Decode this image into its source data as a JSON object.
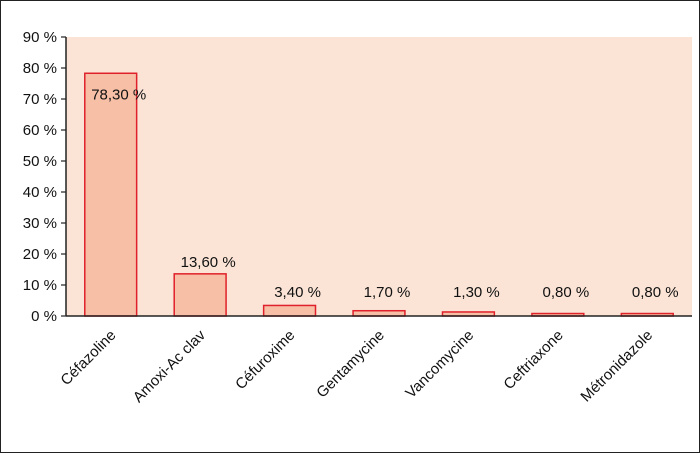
{
  "chart_data": {
    "type": "bar",
    "title": "",
    "xlabel": "",
    "ylabel": "",
    "categories": [
      "Céfazoline",
      "Amoxi-Ac clav",
      "Céfuroxime",
      "Gentamycine",
      "Vancomycine",
      "Ceftriaxone",
      "Métronidazole"
    ],
    "values": [
      78.3,
      13.6,
      3.4,
      1.7,
      1.3,
      0.8,
      0.8
    ],
    "data_labels": [
      "78,30 %",
      "13,60 %",
      "3,40 %",
      "1,70 %",
      "1,30 %",
      "0,80 %",
      "0,80 %"
    ],
    "ylim": [
      0,
      90
    ],
    "yticks": [
      0,
      10,
      20,
      30,
      40,
      50,
      60,
      70,
      80,
      90
    ],
    "ytick_labels": [
      "0 %",
      "10 %",
      "20 %",
      "30 %",
      "40 %",
      "50 %",
      "60 %",
      "70 %",
      "80 %",
      "90 %"
    ],
    "grid": false,
    "legend": "none",
    "colors": {
      "plot_background": "#fbe4d6",
      "bar_fill": "#f6bfa6",
      "bar_stroke": "#e0202a",
      "axis": "#222222"
    }
  }
}
